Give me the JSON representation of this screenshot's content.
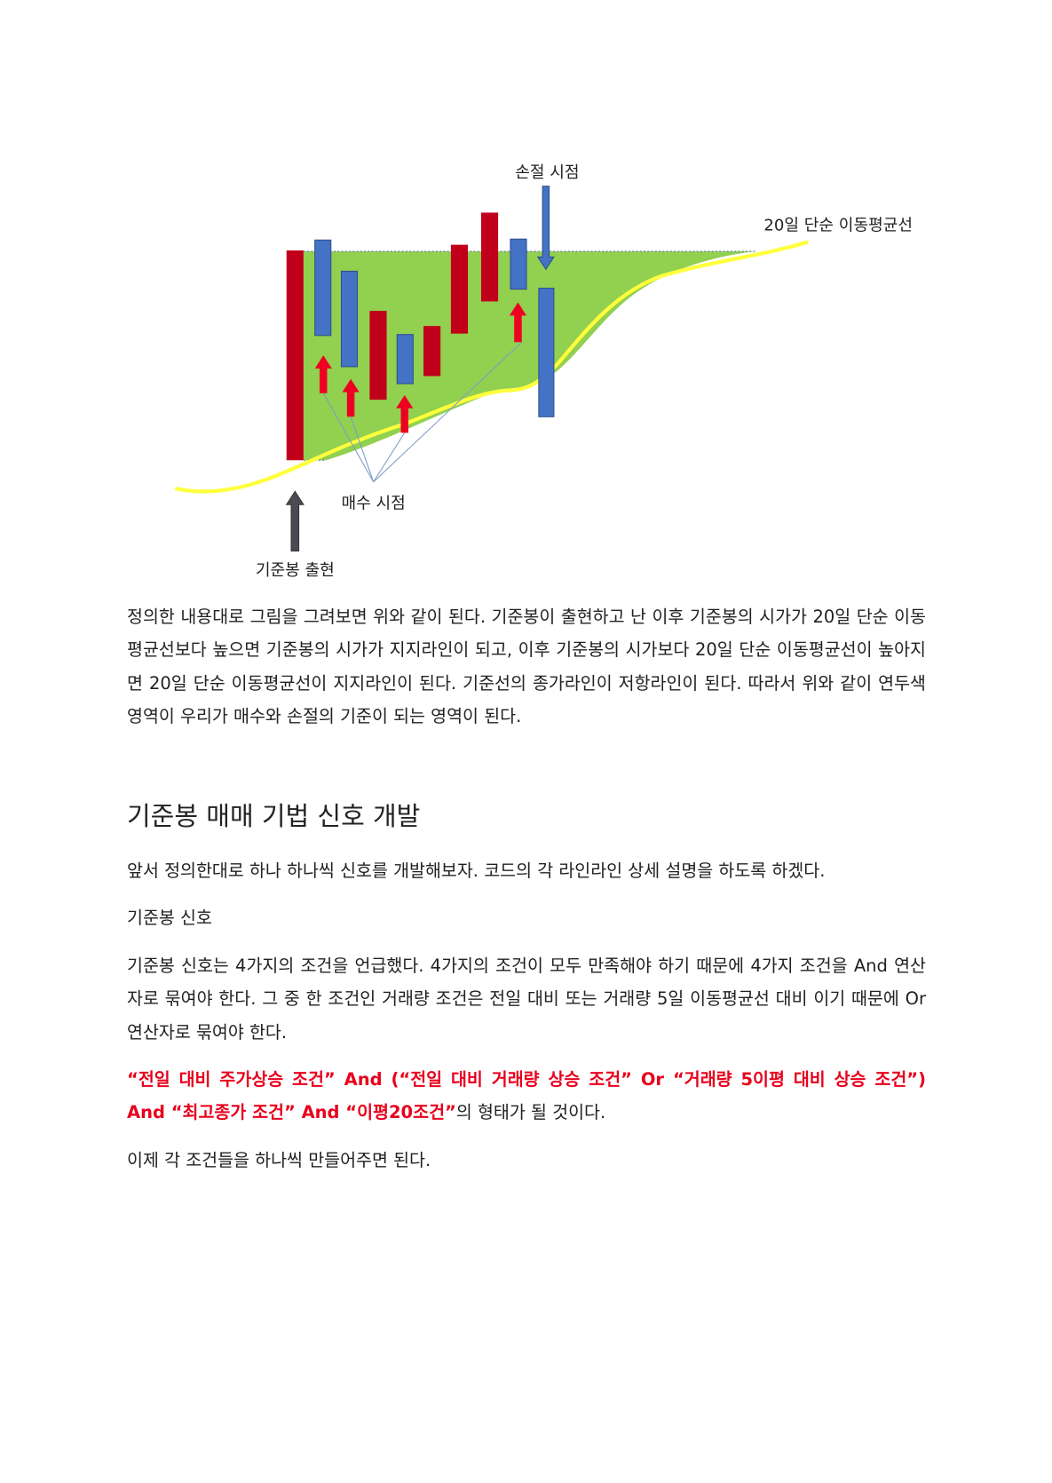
{
  "diagram": {
    "labels": {
      "stop_loss": "손절 시점",
      "ma20": "20일 단순 이동평균선",
      "buy": "매수 시점",
      "base_candle": "기준봉 출현"
    },
    "colors": {
      "bullish": "#c0001a",
      "bearish": "#4472c4",
      "zone": "#92d050",
      "ma_line": "#ffff3c",
      "buy_arrow": "#ee0022",
      "base_arrow": "#4a4a52"
    }
  },
  "body": {
    "p1": "정의한 내용대로 그림을 그려보면 위와 같이 된다. 기준봉이 출현하고 난 이후 기준봉의 시가가 20일 단순 이동평균선보다 높으면 기준봉의 시가가 지지라인이 되고, 이후 기준봉의 시가보다 20일 단순 이동평균선이 높아지면 20일 단순 이동평균선이 지지라인이 된다. 기준선의 종가라인이 저항라인이 된다. 따라서 위와 같이 연두색 영역이 우리가 매수와 손절의 기준이 되는 영역이 된다.",
    "heading": "기준봉 매매 기법 신호 개발",
    "p2": "앞서 정의한대로 하나 하나씩 신호를 개발해보자. 코드의 각 라인라인 상세 설명을 하도록 하겠다.",
    "p3": "기준봉 신호",
    "p4": "기준봉 신호는 4가지의 조건을 언급했다. 4가지의 조건이 모두 만족해야 하기 때문에 4가지 조건을 And 연산자로 묶여야 한다. 그 중 한 조건인 거래량 조건은 전일 대비 또는 거래량 5일 이동평균선 대비 이기 때문에 Or 연산자로 묶여야 한다.",
    "p5_red": "“전일 대비 주가상승 조건” And (“전일 대비 거래량 상승 조건” Or “거래량 5이평 대비 상승 조건”) And “최고종가 조건” And “이평20조건”",
    "p5_rest": "의 형태가 될 것이다.",
    "p6": "이제 각 조건들을 하나씩 만들어주면 된다."
  }
}
